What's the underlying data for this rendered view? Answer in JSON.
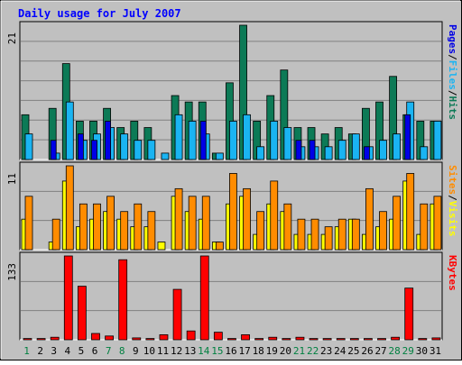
{
  "chart_data": {
    "title": "Daily usage for July 2007",
    "type": "bar",
    "days": [
      "1",
      "2",
      "3",
      "4",
      "5",
      "6",
      "7",
      "8",
      "9",
      "10",
      "11",
      "12",
      "13",
      "14",
      "15",
      "16",
      "17",
      "18",
      "19",
      "20",
      "21",
      "22",
      "23",
      "24",
      "25",
      "26",
      "27",
      "28",
      "29",
      "30",
      "31"
    ],
    "weekend_days": [
      "1",
      "7",
      "8",
      "14",
      "15",
      "21",
      "22",
      "28",
      "29"
    ],
    "panels": [
      {
        "id": "hits-files-pages",
        "ymax_label": "21",
        "ymax": 21,
        "series_labels": [
          "Pages",
          "Files",
          "Hits"
        ],
        "series": [
          {
            "name": "Hits",
            "color": "#0c7a56",
            "values": [
              7,
              0,
              8,
              15,
              6,
              6,
              8,
              5,
              6,
              5,
              0,
              10,
              9,
              9,
              1,
              12,
              21,
              6,
              10,
              14,
              5,
              5,
              4,
              5,
              4,
              8,
              9,
              13,
              7,
              6,
              6
            ]
          },
          {
            "name": "Files",
            "color": "#1ab4f2",
            "values": [
              4,
              0,
              1,
              9,
              3,
              4,
              5,
              4,
              3,
              3,
              1,
              7,
              6,
              4,
              1,
              6,
              7,
              2,
              6,
              5,
              2,
              2,
              2,
              3,
              4,
              2,
              3,
              4,
              9,
              2,
              6
            ]
          },
          {
            "name": "Pages",
            "color": "#0000e6",
            "values": [
              0,
              0,
              3,
              0,
              4,
              3,
              6,
              0,
              0,
              0,
              0,
              0,
              0,
              6,
              0,
              0,
              0,
              0,
              0,
              0,
              3,
              3,
              0,
              0,
              0,
              2,
              0,
              0,
              7,
              0,
              0
            ]
          }
        ]
      },
      {
        "id": "visits-sites",
        "ymax_label": "11",
        "ymax": 11,
        "series_labels": [
          "Sites",
          "Visits"
        ],
        "series": [
          {
            "name": "Visits",
            "color": "#ffff00",
            "values": [
              4,
              0,
              1,
              9,
              3,
              4,
              5,
              4,
              3,
              3,
              1,
              7,
              5,
              4,
              1,
              6,
              7,
              2,
              6,
              5,
              2,
              2,
              2,
              3,
              4,
              2,
              3,
              4,
              9,
              2,
              6
            ]
          },
          {
            "name": "Sites",
            "color": "#ff8c00",
            "values": [
              7,
              0,
              4,
              11,
              6,
              6,
              7,
              5,
              6,
              5,
              0,
              8,
              7,
              7,
              1,
              10,
              8,
              5,
              9,
              6,
              4,
              4,
              3,
              4,
              4,
              8,
              5,
              7,
              10,
              6,
              7
            ]
          }
        ]
      },
      {
        "id": "kbytes",
        "ymax_label": "133",
        "ymax": 133,
        "series_labels": [
          "KBytes"
        ],
        "series": [
          {
            "name": "KBytes",
            "color": "#ff0000",
            "values": [
              2,
              2,
              4,
              133,
              85,
              10,
              6,
              127,
              3,
              2,
              8,
              80,
              14,
              133,
              12,
              2,
              8,
              2,
              4,
              2,
              4,
              2,
              2,
              2,
              2,
              2,
              2,
              4,
              82,
              2,
              3
            ]
          }
        ]
      }
    ]
  },
  "colors": {
    "page_bg": "#c0c0c0",
    "plot_bg": "#c0c0c0",
    "grid": "#808080",
    "title": "#0000ff",
    "axis_text": "#000000",
    "weekend_text": "#008040",
    "hits": "#0c7a56",
    "files": "#1ab4f2",
    "pages": "#0000e6",
    "visits": "#ffff00",
    "sites": "#ff8c00",
    "kbytes": "#ff0000"
  }
}
